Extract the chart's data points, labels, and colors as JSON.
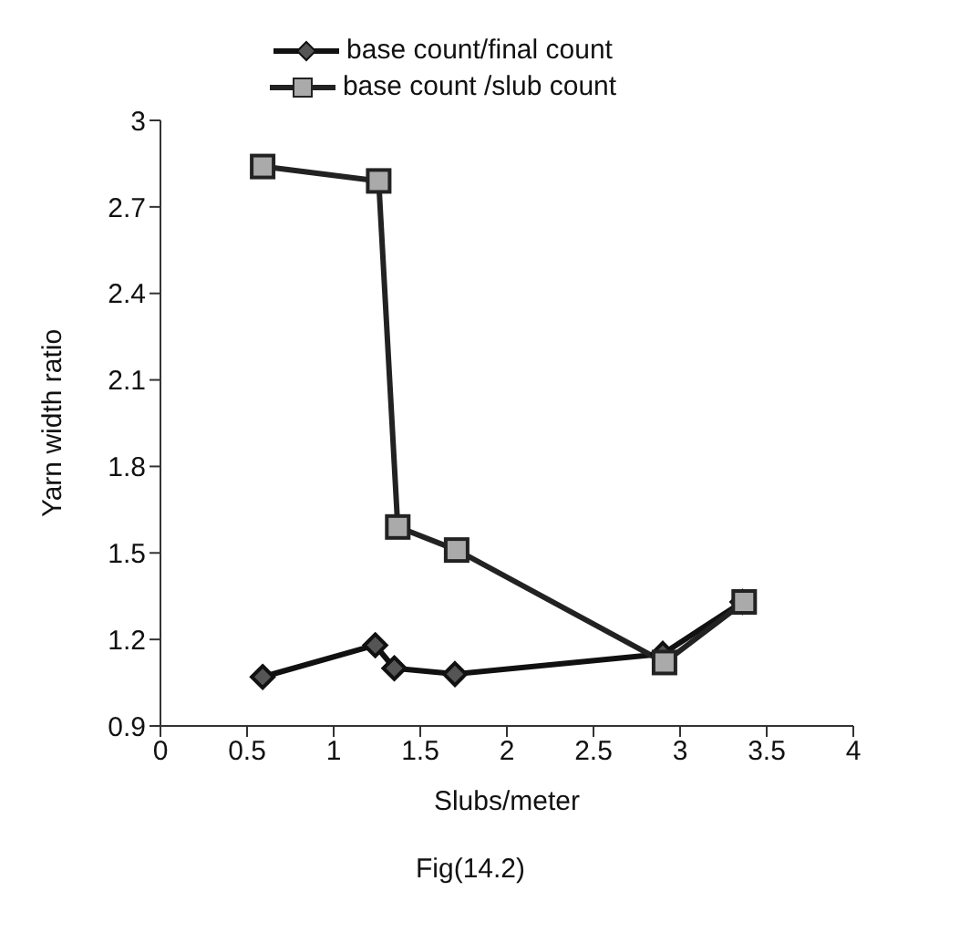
{
  "chart_data": {
    "type": "line",
    "xlabel": "Slubs/meter",
    "ylabel": "Yarn width ratio",
    "annotations": [
      "Fig(14.2)"
    ],
    "series": [
      {
        "name": "base count/final count",
        "color": "#111111",
        "marker": "diamond",
        "x": [
          0.59,
          1.24,
          1.35,
          1.7,
          2.9,
          3.36
        ],
        "values": [
          1.07,
          1.18,
          1.1,
          1.08,
          1.15,
          1.33
        ]
      },
      {
        "name": "base count /slub count",
        "color": "#222222",
        "marker": "square",
        "x": [
          0.59,
          1.26,
          1.37,
          1.71,
          2.91,
          3.37
        ],
        "values": [
          2.84,
          2.79,
          1.59,
          1.51,
          1.12,
          1.33
        ]
      }
    ],
    "xlim": [
      0,
      4
    ],
    "xticks": [
      0,
      0.5,
      1,
      1.5,
      2,
      2.5,
      3,
      3.5,
      4
    ],
    "ylim": [
      0.9,
      3
    ],
    "yticks": [
      0.9,
      1.2,
      1.5,
      1.8,
      2.1,
      2.4,
      2.7,
      3
    ],
    "legend": "top"
  }
}
